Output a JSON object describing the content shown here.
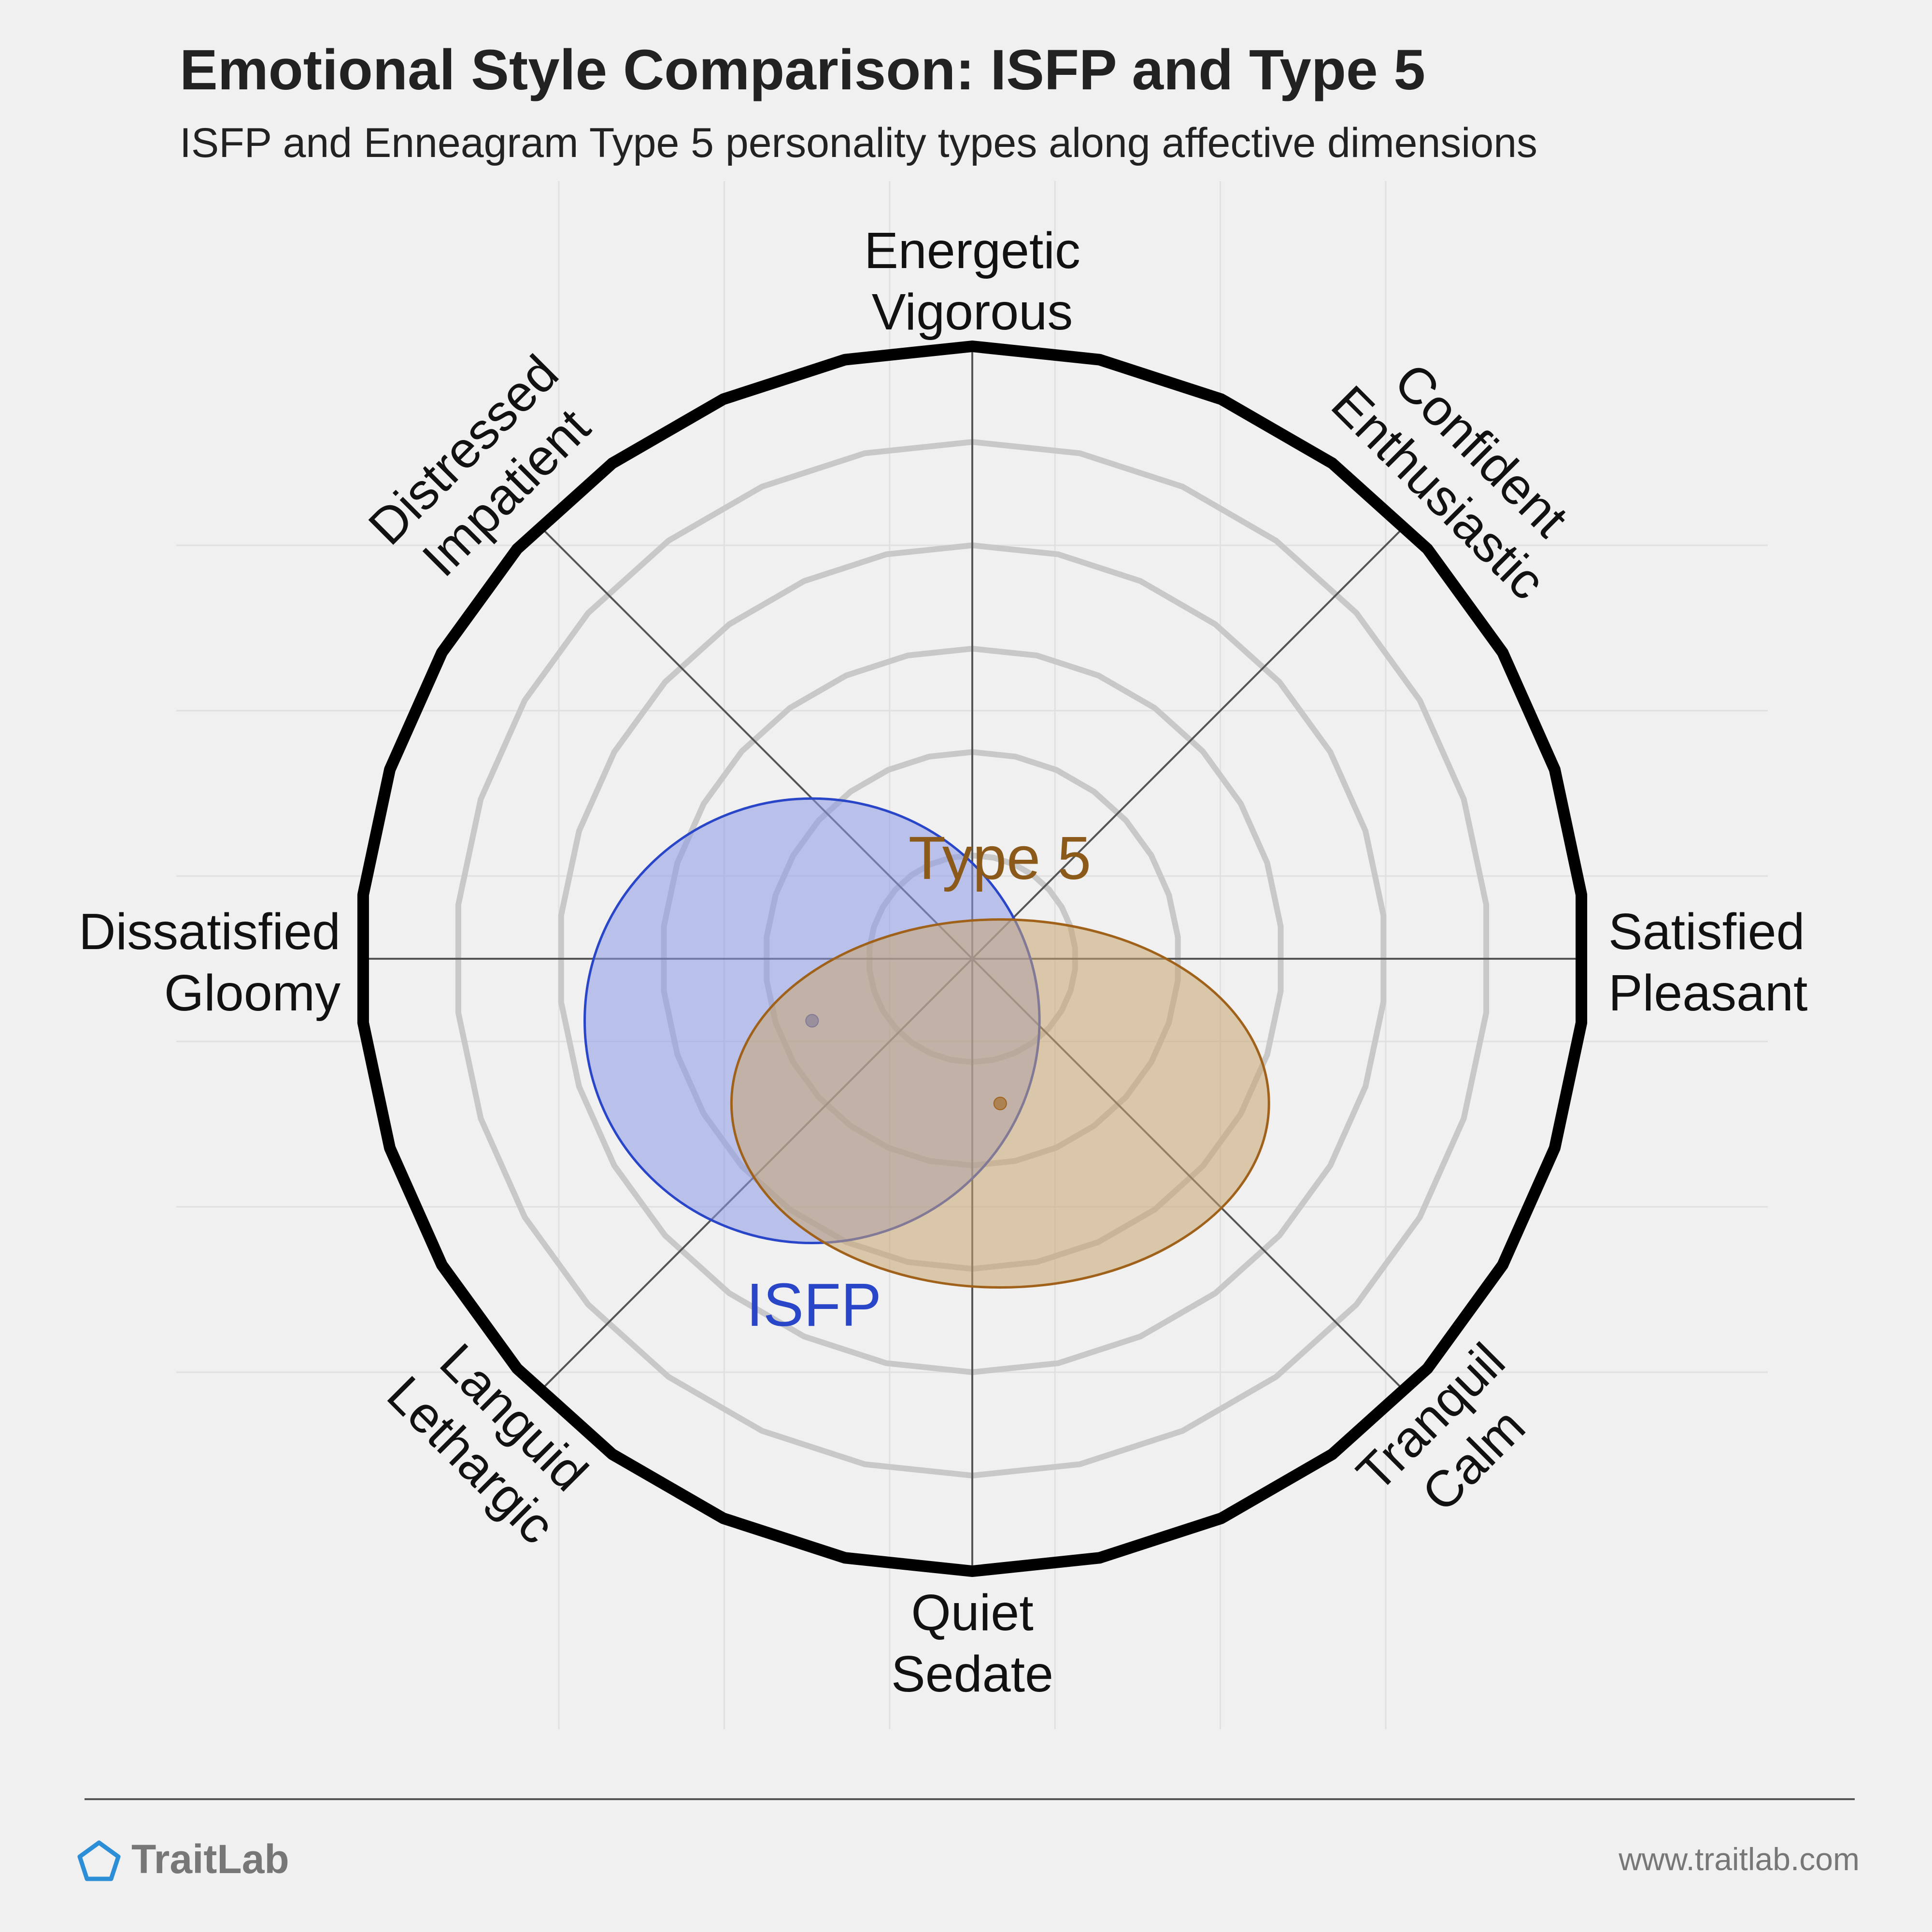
{
  "header": {
    "title": "Emotional Style Comparison: ISFP and Type 5",
    "subtitle": "ISFP and Enneagram Type 5 personality types along affective dimensions"
  },
  "footer": {
    "brand": "TraitLab",
    "url": "www.traitlab.com",
    "logo_icon": "pentagon-icon"
  },
  "chart_data": {
    "type": "scatter",
    "title": "Emotional Style Comparison: ISFP and Type 5",
    "subtitle": "ISFP and Enneagram Type 5 personality types along affective dimensions",
    "xlim": [
      -6,
      6
    ],
    "ylim": [
      -6,
      6
    ],
    "grid": true,
    "rings": [
      1,
      2,
      3,
      4,
      5
    ],
    "axes": [
      {
        "angle_deg": 90,
        "lines": [
          "Energetic",
          "Vigorous"
        ]
      },
      {
        "angle_deg": 45,
        "lines": [
          "Confident",
          "Enthusiastic"
        ]
      },
      {
        "angle_deg": 0,
        "lines": [
          "Satisfied",
          "Pleasant"
        ]
      },
      {
        "angle_deg": -45,
        "lines": [
          "Tranquil",
          "Calm"
        ]
      },
      {
        "angle_deg": -90,
        "lines": [
          "Quiet",
          "Sedate"
        ]
      },
      {
        "angle_deg": -135,
        "lines": [
          "Languid",
          "Lethargic"
        ]
      },
      {
        "angle_deg": 180,
        "lines": [
          "Dissatisfied",
          "Gloomy"
        ]
      },
      {
        "angle_deg": 135,
        "lines": [
          "Distressed",
          "Impatient"
        ]
      }
    ],
    "series": [
      {
        "name": "ISFP",
        "x": -1.55,
        "y": -0.6,
        "rx": 2.2,
        "ry": 2.15,
        "color": "#2a46c8",
        "fill": "#8c9be6",
        "text_color": "#2a46c8"
      },
      {
        "name": "Type 5",
        "x": 0.27,
        "y": -1.4,
        "rx": 2.6,
        "ry": 1.78,
        "color": "#a0621a",
        "fill": "#c8a46e",
        "text_color": "#8b5a1a"
      }
    ]
  }
}
